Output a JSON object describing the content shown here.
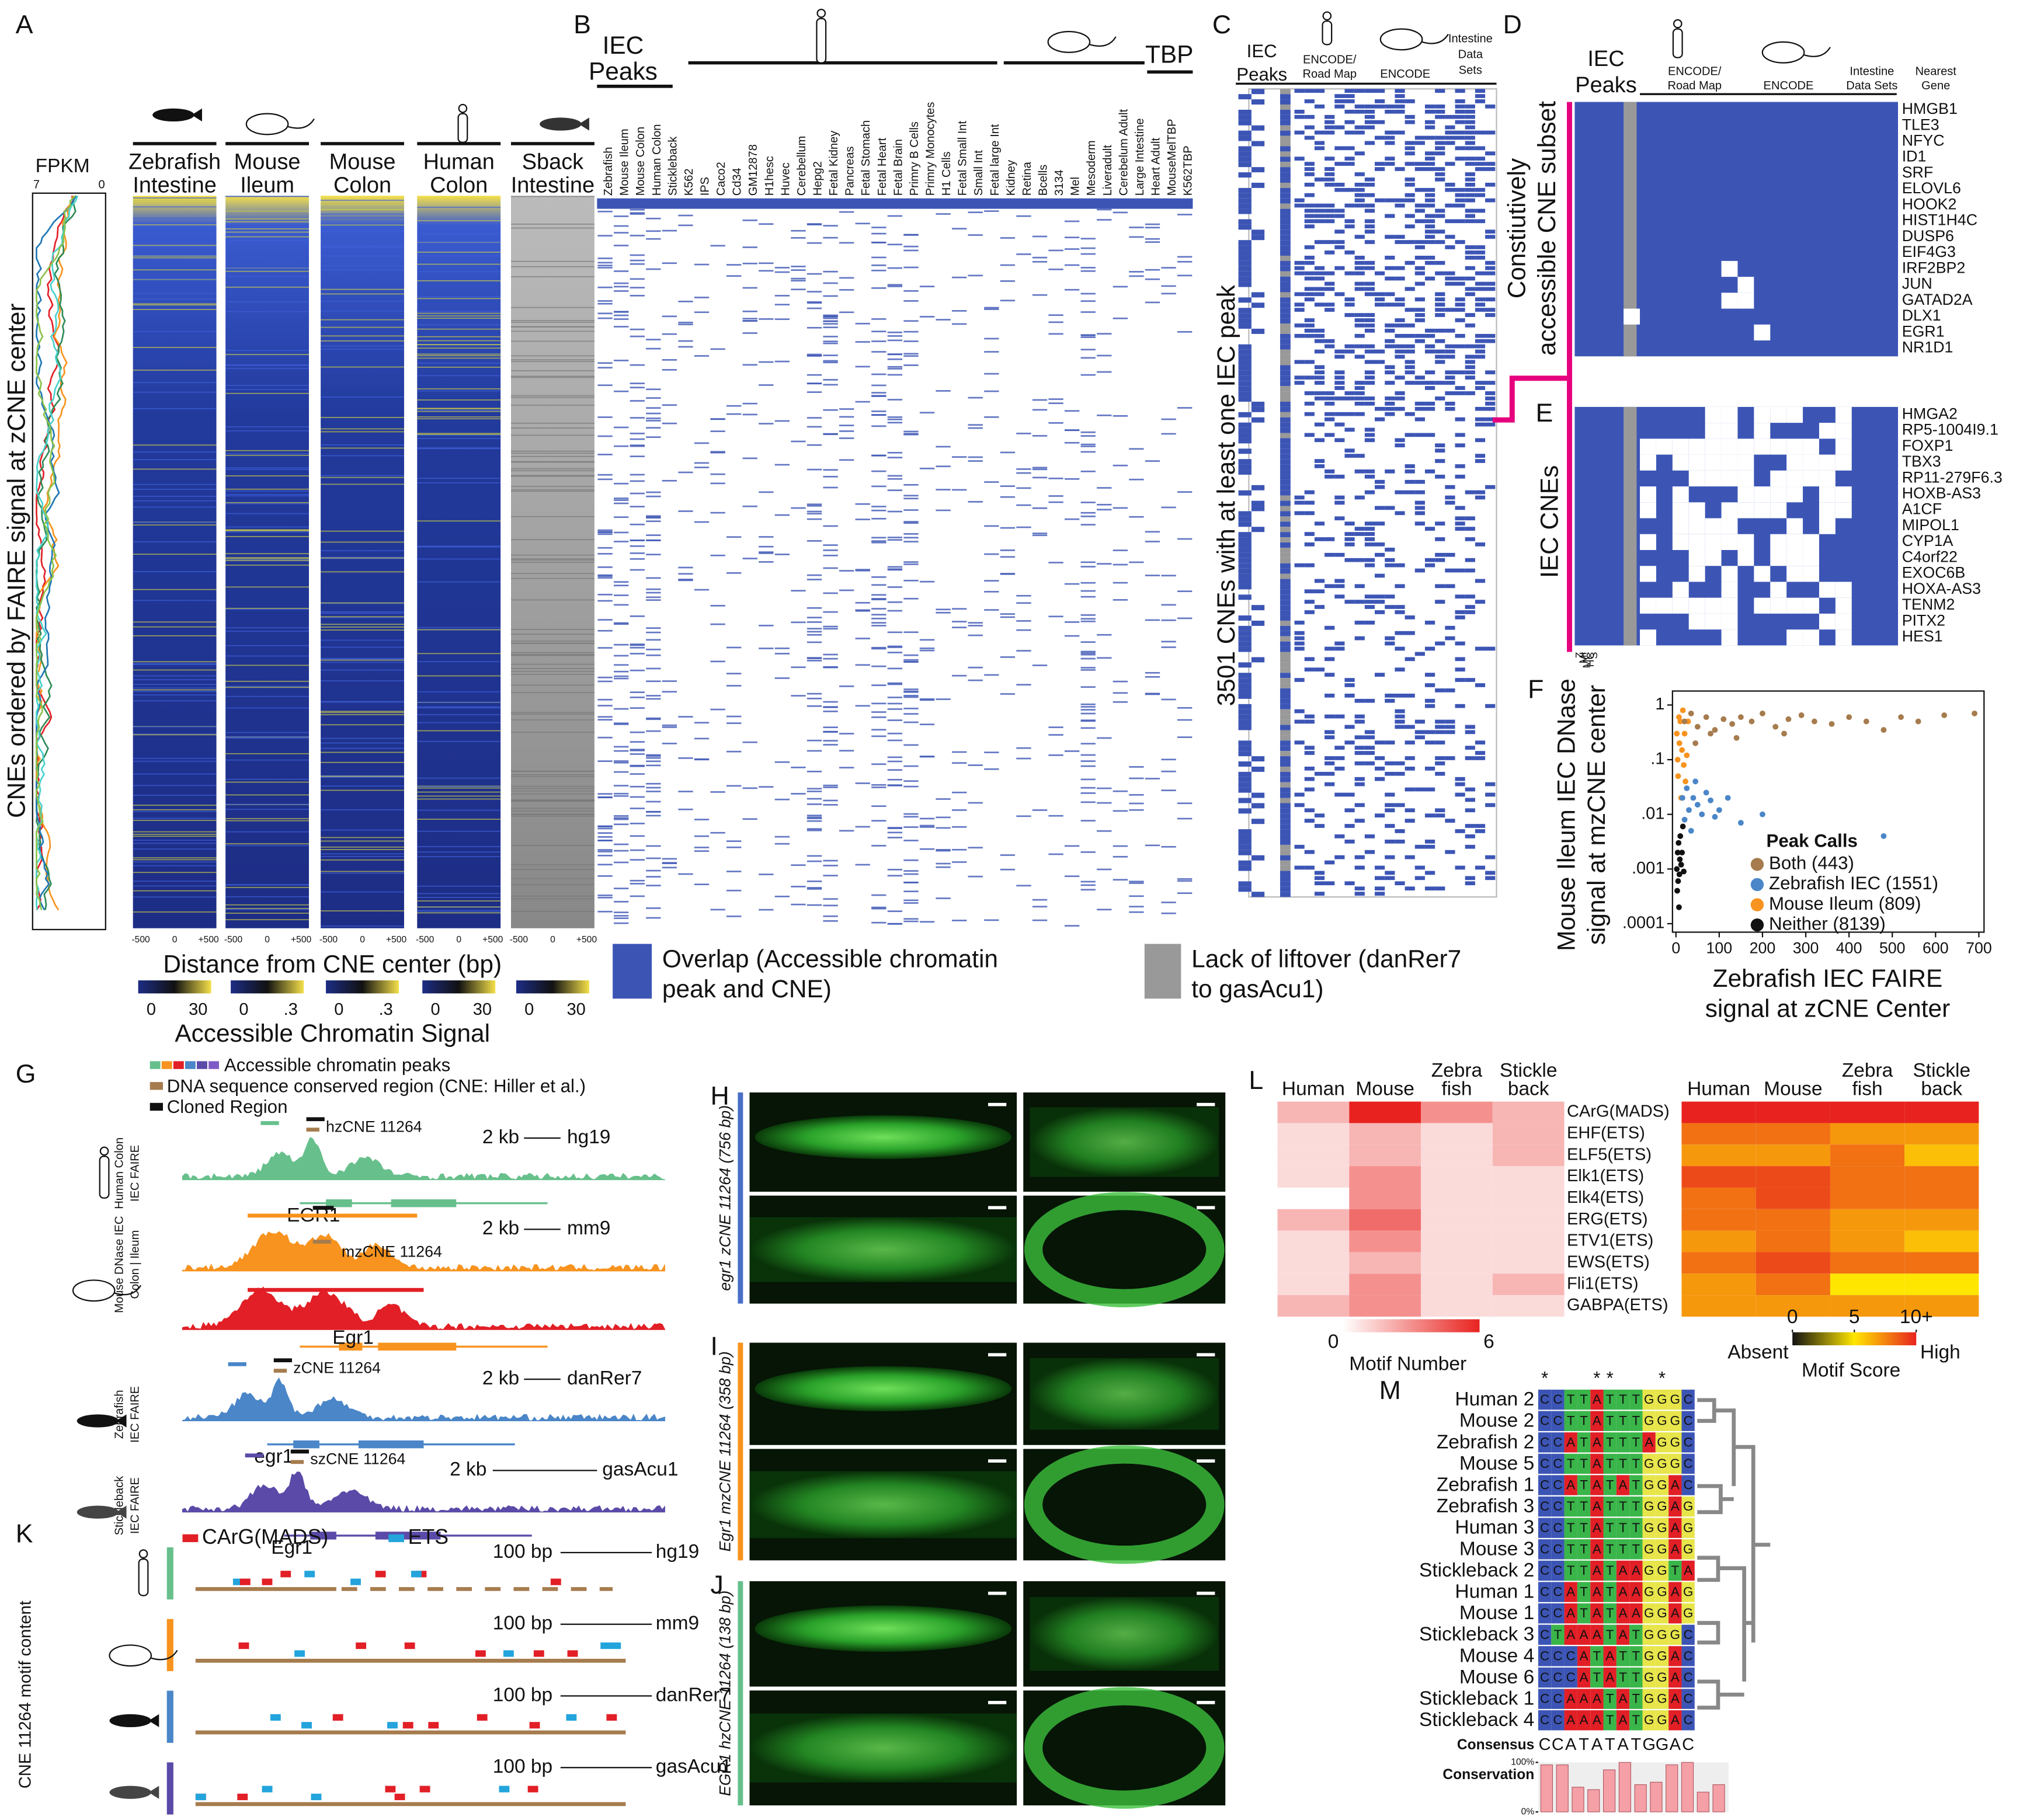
{
  "A": {
    "label": "A",
    "fpkm": "FPKM",
    "fpkm_ticks": [
      "7",
      "0"
    ],
    "y_label": "CNEs ordered by FAIRE signal at zCNE center",
    "columns": [
      [
        "Zebrafish",
        "Intestine"
      ],
      [
        "Mouse",
        "Ileum"
      ],
      [
        "Mouse",
        "Colon"
      ],
      [
        "Human",
        "Colon"
      ],
      [
        "Sback",
        "Intestine"
      ]
    ],
    "x_ticks": [
      "-500",
      "0",
      "+500"
    ],
    "x_label": "Distance from CNE center (bp)",
    "scale_labels": [
      [
        "0",
        "30"
      ],
      [
        "0",
        ".3"
      ],
      [
        "0",
        ".3"
      ],
      [
        "0",
        "30"
      ],
      [
        "0",
        "30"
      ]
    ],
    "colorbar_title": "Accessible Chromatin Signal"
  },
  "B": {
    "label": "B",
    "iec": [
      "IEC",
      "Peaks"
    ],
    "tbp": "TBP",
    "columns": [
      "Zebrafish",
      "Mouse Ileum",
      "Mouse Colon",
      "Human Colon",
      "Stickleback",
      "K562",
      "IPS",
      "Caco2",
      "Cd34",
      "GM12878",
      "H1hesc",
      "Huvec",
      "Cerebellum",
      "Hepg2",
      "Fetal Kidney",
      "Pancreas",
      "Fetal Stomach",
      "Fetal Heart",
      "Fetal Brain",
      "Primry B Cells",
      "Primry Monocytes",
      "H1 Cells",
      "Fetal Small Int",
      "Small Int",
      "Fetal large Int",
      "Kidney",
      "Retina",
      "Bcells",
      "3134",
      "Mel",
      "Mesoderm",
      "Liveradult",
      "Cerebelum Adult",
      "Large Intestine",
      "Heart Adult",
      "MouseMelTBP",
      "K562TBP"
    ],
    "legend_overlap": [
      "Overlap (Accessible chromatin",
      "peak and CNE)"
    ],
    "legend_liftover": [
      "Lack of liftover (danRer7",
      "to gasAcu1)"
    ]
  },
  "C": {
    "label": "C",
    "iec": [
      "IEC",
      "Peaks"
    ],
    "encode_roadmap": [
      "ENCODE/",
      "Road Map"
    ],
    "encode": "ENCODE",
    "intestine": [
      "Intestine",
      "Data",
      "Sets"
    ],
    "y_label": "3501 CNEs with at least one IEC peak"
  },
  "D": {
    "label": "D",
    "iec": [
      "IEC",
      "Peaks"
    ],
    "encode_roadmap": [
      "ENCODE/",
      "Road Map"
    ],
    "encode": "ENCODE",
    "intestine": [
      "Intestine",
      "Data Sets"
    ],
    "nearest": [
      "Nearest",
      "Gene"
    ],
    "side_label": [
      "Constiutively",
      "accessible CNE subset"
    ],
    "genes": [
      "HMGB1",
      "TLE3",
      "NFYC",
      "ID1",
      "SRF",
      "ELOVL6",
      "HOOK2",
      "HIST1H4C",
      "DUSP6",
      "EIF4G3",
      "IRF2BP2",
      "JUN",
      "GATAD2A",
      "DLX1",
      "EGR1",
      "NR1D1"
    ]
  },
  "E": {
    "label": "E",
    "side_label": "IEC  CNEs",
    "genes": [
      "HMGA2",
      "RP5-1004I9.1",
      "FOXP1",
      "TBX3",
      "RP11-279F6.3",
      "HOXB-AS3",
      "A1CF",
      "MIPOL1",
      "CYP1A",
      "C4orf22",
      "EXOC6B",
      "HOXA-AS3",
      "TENM2",
      "PITX2",
      "HES1"
    ],
    "bottom": [
      "Z",
      "MI",
      "MC",
      "HC",
      "S"
    ]
  },
  "F": {
    "label": "F",
    "chart_data": {
      "type": "scatter",
      "y_label": [
        "Mouse Ileum IEC DNase",
        "signal at mzCNE center"
      ],
      "x_label": [
        "Zebrafish IEC FAIRE",
        "signal at zCNE Center"
      ],
      "log_y": true,
      "xlim": [
        -8,
        712
      ],
      "ylim": [
        7e-05,
        1.8
      ],
      "xticks": [
        0,
        100,
        200,
        300,
        400,
        500,
        600,
        700
      ],
      "yticks": [
        1,
        {
          "value": 0.1,
          "label": ".1"
        },
        {
          "value": 0.01,
          "label": ".01"
        },
        {
          "value": 0.001,
          "label": ".001"
        },
        {
          "value": 0.0001,
          "label": ".0001"
        }
      ],
      "legend_title": "Peak Calls",
      "series": [
        {
          "name": "Both (443)",
          "color": "#a67c4e",
          "x": [
            20,
            35,
            50,
            70,
            90,
            110,
            130,
            150,
            175,
            200,
            230,
            260,
            290,
            320,
            360,
            400,
            440,
            480,
            520,
            560,
            620,
            690,
            45,
            80,
            140,
            250
          ],
          "y": [
            0.5,
            0.7,
            0.4,
            0.6,
            0.35,
            0.55,
            0.45,
            0.6,
            0.5,
            0.7,
            0.4,
            0.55,
            0.65,
            0.5,
            0.45,
            0.6,
            0.5,
            0.35,
            0.6,
            0.5,
            0.65,
            0.7,
            0.2,
            0.3,
            0.25,
            0.3
          ]
        },
        {
          "name": "Zebrafish IEC (1551)",
          "color": "#4a86c8",
          "x": [
            15,
            20,
            25,
            30,
            35,
            40,
            45,
            50,
            60,
            70,
            80,
            90,
            100,
            120,
            150,
            200,
            480
          ],
          "y": [
            0.02,
            0.008,
            0.03,
            0.012,
            0.005,
            0.02,
            0.04,
            0.015,
            0.01,
            0.025,
            0.018,
            0.009,
            0.012,
            0.02,
            0.007,
            0.01,
            0.004
          ]
        },
        {
          "name": "Mouse Ileum (809)",
          "color": "#f7931e",
          "x": [
            2,
            4,
            5,
            7,
            8,
            10,
            12,
            14,
            16,
            18,
            20,
            22,
            25,
            28
          ],
          "y": [
            0.3,
            0.1,
            0.05,
            0.6,
            0.2,
            0.5,
            0.02,
            0.15,
            0.8,
            0.08,
            0.3,
            0.04,
            0.12,
            0.5
          ]
        },
        {
          "name": "Neither (8139)",
          "color": "#111111",
          "x": [
            2,
            3,
            4,
            5,
            6,
            7,
            8,
            9,
            10,
            12,
            14,
            16,
            18
          ],
          "y": [
            0.001,
            0.0004,
            0.002,
            0.0006,
            0.003,
            0.0002,
            0.0008,
            0.0015,
            0.004,
            0.0012,
            0.002,
            0.006,
            0.0009
          ]
        }
      ]
    }
  },
  "G": {
    "label": "G",
    "legend": [
      "Accessible chromatin peaks",
      "DNA sequence conserved region (CNE: Hiller et al.)",
      "Cloned Region"
    ],
    "tracks": [
      {
        "side": [
          "Human Colon",
          "IEC FAIRE"
        ],
        "cne": "hzCNE 11264",
        "scale": "2 kb",
        "build": "hg19",
        "gene": "EGR1"
      },
      {
        "side": [
          "Mouse DNase IEC",
          "Colon | Ileum"
        ],
        "cne": "mzCNE 11264",
        "scale": "2 kb",
        "build": "mm9",
        "gene": "Egr1"
      },
      {
        "side": [
          "Zebrafish",
          "IEC FAIRE"
        ],
        "cne": "zCNE 11264",
        "scale": "2 kb",
        "build": "danRer7",
        "gene": "egr1"
      },
      {
        "side": [
          "Stickleback",
          "IEC FAIRE"
        ],
        "cne": "szCNE 11264",
        "scale": "2 kb",
        "build": "gasAcu1",
        "gene": "Egr1"
      }
    ]
  },
  "H": {
    "label": "H",
    "side": "egr1 zCNE 11264 (756 bp)"
  },
  "I": {
    "label": "I",
    "side": "Egr1 mzCNE 11264 (358 bp)"
  },
  "J": {
    "label": "J",
    "side": "EGR1 hzCNE 11264 (138 bp)"
  },
  "K": {
    "label": "K",
    "legend": [
      "CArG(MADS)",
      "ETS"
    ],
    "side": "CNE 11264 motif content",
    "scale": "100 bp",
    "builds": [
      "hg19",
      "mm9",
      "danRer7",
      "gasAcu1"
    ]
  },
  "L": {
    "label": "L",
    "columns": [
      [
        "Human"
      ],
      [
        "Mouse"
      ],
      [
        "Zebra",
        "fish"
      ],
      [
        "Stickle",
        "back"
      ]
    ],
    "rows": [
      "CArG(MADS)",
      "EHF(ETS)",
      "ELF5(ETS)",
      "Elk1(ETS)",
      "Elk4(ETS)",
      "ERG(ETS)",
      "ETV1(ETS)",
      "EWS(ETS)",
      "Fli1(ETS)",
      "GABPA(ETS)"
    ],
    "motif_number": [
      [
        2,
        6,
        3,
        2
      ],
      [
        1,
        2,
        1,
        2
      ],
      [
        1,
        2,
        1,
        2
      ],
      [
        1,
        3,
        1,
        1
      ],
      [
        0,
        3,
        1,
        1
      ],
      [
        2,
        4,
        1,
        1
      ],
      [
        1,
        3,
        1,
        1
      ],
      [
        1,
        2,
        1,
        1
      ],
      [
        1,
        3,
        1,
        2
      ],
      [
        2,
        3,
        1,
        1
      ]
    ],
    "motif_number_lim": [
      0,
      6
    ],
    "motif_number_ticks": [
      0,
      6
    ],
    "motif_number_title": "Motif Number",
    "motif_score": [
      [
        10,
        10,
        10,
        10
      ],
      [
        8,
        8,
        7,
        7
      ],
      [
        7,
        7,
        8,
        6
      ],
      [
        9,
        9,
        8,
        8
      ],
      [
        8,
        9,
        8,
        8
      ],
      [
        8,
        8,
        7,
        7
      ],
      [
        7,
        8,
        7,
        6
      ],
      [
        8,
        9,
        8,
        8
      ],
      [
        7,
        8,
        5,
        5
      ],
      [
        7,
        7,
        7,
        7
      ]
    ],
    "motif_score_lim": [
      0,
      10
    ],
    "motif_score_ticks": [
      0,
      5,
      {
        "value": 10,
        "label": "10+"
      }
    ],
    "motif_score_ends": [
      "Absent",
      "High"
    ],
    "motif_score_title": "Motif Score"
  },
  "M": {
    "label": "M",
    "stars": [
      "*",
      "*",
      "*",
      "*"
    ],
    "rows": [
      {
        "name": "Human 2",
        "seq": [
          "C",
          "C",
          "T",
          "T",
          "A",
          "T",
          "T",
          "T",
          "G",
          "G",
          "G",
          "C"
        ]
      },
      {
        "name": "Mouse 2",
        "seq": [
          "C",
          "C",
          "T",
          "T",
          "A",
          "T",
          "T",
          "T",
          "G",
          "G",
          "G",
          "C"
        ]
      },
      {
        "name": "Zebrafish 2",
        "seq": [
          "C",
          "C",
          "A",
          "T",
          "A",
          "T",
          "T",
          "T",
          "A",
          "G",
          "G",
          "C"
        ]
      },
      {
        "name": "Mouse 5",
        "seq": [
          "C",
          "C",
          "T",
          "T",
          "A",
          "T",
          "T",
          "T",
          "G",
          "G",
          "G",
          "C"
        ]
      },
      {
        "name": "Zebrafish 1",
        "seq": [
          "C",
          "C",
          "A",
          "T",
          "A",
          "T",
          "A",
          "T",
          "G",
          "G",
          "A",
          "C"
        ]
      },
      {
        "name": "Zebrafish 3",
        "seq": [
          "C",
          "C",
          "T",
          "T",
          "A",
          "T",
          "T",
          "T",
          "G",
          "G",
          "A",
          "G"
        ]
      },
      {
        "name": "Human 3",
        "seq": [
          "C",
          "C",
          "T",
          "T",
          "A",
          "T",
          "T",
          "T",
          "G",
          "G",
          "A",
          "G"
        ]
      },
      {
        "name": "Mouse 3",
        "seq": [
          "C",
          "C",
          "T",
          "T",
          "A",
          "T",
          "T",
          "T",
          "G",
          "G",
          "A",
          "G"
        ]
      },
      {
        "name": "Stickleback 2",
        "seq": [
          "C",
          "C",
          "T",
          "T",
          "A",
          "T",
          "A",
          "A",
          "G",
          "G",
          "T",
          "A"
        ]
      },
      {
        "name": "Human 1",
        "seq": [
          "C",
          "C",
          "A",
          "T",
          "A",
          "T",
          "A",
          "A",
          "G",
          "G",
          "A",
          "G"
        ]
      },
      {
        "name": "Mouse 1",
        "seq": [
          "C",
          "C",
          "A",
          "T",
          "A",
          "T",
          "A",
          "A",
          "G",
          "G",
          "A",
          "G"
        ]
      },
      {
        "name": "Stickleback 3",
        "seq": [
          "C",
          "T",
          "A",
          "A",
          "A",
          "T",
          "A",
          "T",
          "G",
          "G",
          "G",
          "C"
        ]
      },
      {
        "name": "Mouse 4",
        "seq": [
          "C",
          "C",
          "C",
          "A",
          "T",
          "A",
          "T",
          "T",
          "G",
          "G",
          "A",
          "C"
        ]
      },
      {
        "name": "Mouse 6",
        "seq": [
          "C",
          "C",
          "C",
          "A",
          "T",
          "A",
          "T",
          "T",
          "G",
          "G",
          "A",
          "C"
        ]
      },
      {
        "name": "Stickleback 1",
        "seq": [
          "C",
          "C",
          "A",
          "A",
          "A",
          "T",
          "A",
          "T",
          "G",
          "G",
          "A",
          "C"
        ]
      },
      {
        "name": "Stickleback 4",
        "seq": [
          "C",
          "C",
          "A",
          "A",
          "A",
          "T",
          "A",
          "T",
          "G",
          "G",
          "A",
          "C"
        ]
      }
    ],
    "consensus_label": "Consensus",
    "consensus": [
      "C",
      "C",
      "A",
      "T",
      "A",
      "T",
      "A",
      "T",
      "G",
      "G",
      "A",
      "C"
    ],
    "conservation_label": "Conservation",
    "conservation_ticks": [
      {
        "value": 100,
        "label": "100%"
      },
      {
        "value": 0,
        "label": "0%"
      }
    ],
    "conservation": [
      95,
      95,
      50,
      45,
      85,
      100,
      55,
      60,
      95,
      100,
      40,
      55
    ]
  }
}
